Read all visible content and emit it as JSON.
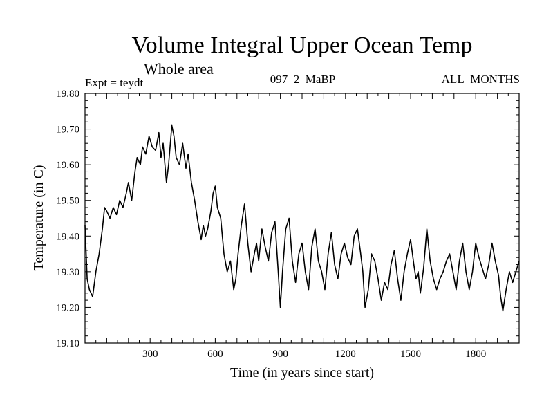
{
  "header": {
    "subtitle": "Whole area",
    "expt": "Expt = teydt",
    "run_id": "097_2_MaBP",
    "months": "ALL_MONTHS"
  },
  "chart_data": {
    "type": "line",
    "title": "Volume Integral Upper Ocean Temp",
    "xlabel": "Time (in years since start)",
    "ylabel": "Temperature (in C)",
    "xlim": [
      0,
      2000
    ],
    "ylim": [
      19.1,
      19.8
    ],
    "x_ticks": [
      300,
      600,
      900,
      1200,
      1500,
      1800
    ],
    "y_ticks": [
      "19.10",
      "19.20",
      "19.30",
      "19.40",
      "19.50",
      "19.60",
      "19.70",
      "19.80"
    ],
    "grid": false,
    "series": [
      {
        "name": "Volume Integral Upper Ocean Temp",
        "color": "#000000",
        "x": [
          0,
          10,
          20,
          35,
          50,
          65,
          80,
          90,
          100,
          115,
          130,
          145,
          160,
          175,
          190,
          200,
          215,
          230,
          240,
          255,
          265,
          280,
          295,
          310,
          325,
          340,
          350,
          360,
          375,
          385,
          400,
          410,
          420,
          435,
          450,
          465,
          475,
          490,
          505,
          520,
          535,
          545,
          555,
          565,
          580,
          590,
          600,
          610,
          625,
          640,
          655,
          670,
          685,
          695,
          705,
          720,
          735,
          750,
          765,
          780,
          790,
          800,
          815,
          830,
          845,
          860,
          875,
          890,
          900,
          910,
          925,
          940,
          955,
          970,
          985,
          1000,
          1015,
          1030,
          1045,
          1060,
          1075,
          1090,
          1105,
          1120,
          1135,
          1150,
          1165,
          1180,
          1195,
          1210,
          1225,
          1240,
          1255,
          1270,
          1280,
          1290,
          1305,
          1320,
          1335,
          1350,
          1365,
          1380,
          1395,
          1410,
          1425,
          1440,
          1455,
          1470,
          1485,
          1500,
          1515,
          1525,
          1535,
          1545,
          1560,
          1575,
          1590,
          1605,
          1620,
          1635,
          1650,
          1665,
          1680,
          1695,
          1710,
          1725,
          1740,
          1755,
          1770,
          1785,
          1800,
          1815,
          1830,
          1845,
          1860,
          1875,
          1890,
          1905,
          1915,
          1925,
          1940,
          1955,
          1970,
          1985,
          2000
        ],
        "values": [
          19.43,
          19.28,
          19.25,
          19.23,
          19.3,
          19.35,
          19.42,
          19.48,
          19.47,
          19.45,
          19.48,
          19.46,
          19.5,
          19.48,
          19.52,
          19.55,
          19.5,
          19.58,
          19.62,
          19.6,
          19.65,
          19.63,
          19.68,
          19.65,
          19.64,
          19.69,
          19.62,
          19.66,
          19.55,
          19.6,
          19.71,
          19.68,
          19.62,
          19.6,
          19.66,
          19.59,
          19.63,
          19.55,
          19.5,
          19.44,
          19.39,
          19.43,
          19.4,
          19.42,
          19.47,
          19.52,
          19.54,
          19.48,
          19.45,
          19.35,
          19.3,
          19.33,
          19.25,
          19.28,
          19.35,
          19.43,
          19.49,
          19.38,
          19.3,
          19.35,
          19.38,
          19.33,
          19.42,
          19.37,
          19.33,
          19.41,
          19.44,
          19.3,
          19.2,
          19.3,
          19.42,
          19.45,
          19.33,
          19.27,
          19.35,
          19.38,
          19.3,
          19.25,
          19.37,
          19.42,
          19.33,
          19.3,
          19.25,
          19.35,
          19.41,
          19.32,
          19.28,
          19.35,
          19.38,
          19.34,
          19.32,
          19.4,
          19.42,
          19.35,
          19.3,
          19.2,
          19.25,
          19.35,
          19.33,
          19.28,
          19.22,
          19.27,
          19.25,
          19.32,
          19.36,
          19.28,
          19.22,
          19.3,
          19.35,
          19.39,
          19.32,
          19.28,
          19.3,
          19.24,
          19.31,
          19.42,
          19.33,
          19.28,
          19.25,
          19.28,
          19.3,
          19.33,
          19.35,
          19.3,
          19.25,
          19.33,
          19.38,
          19.3,
          19.25,
          19.3,
          19.38,
          19.34,
          19.31,
          19.28,
          19.32,
          19.38,
          19.33,
          19.29,
          19.23,
          19.19,
          19.25,
          19.3,
          19.27,
          19.3,
          19.33
        ]
      }
    ]
  }
}
